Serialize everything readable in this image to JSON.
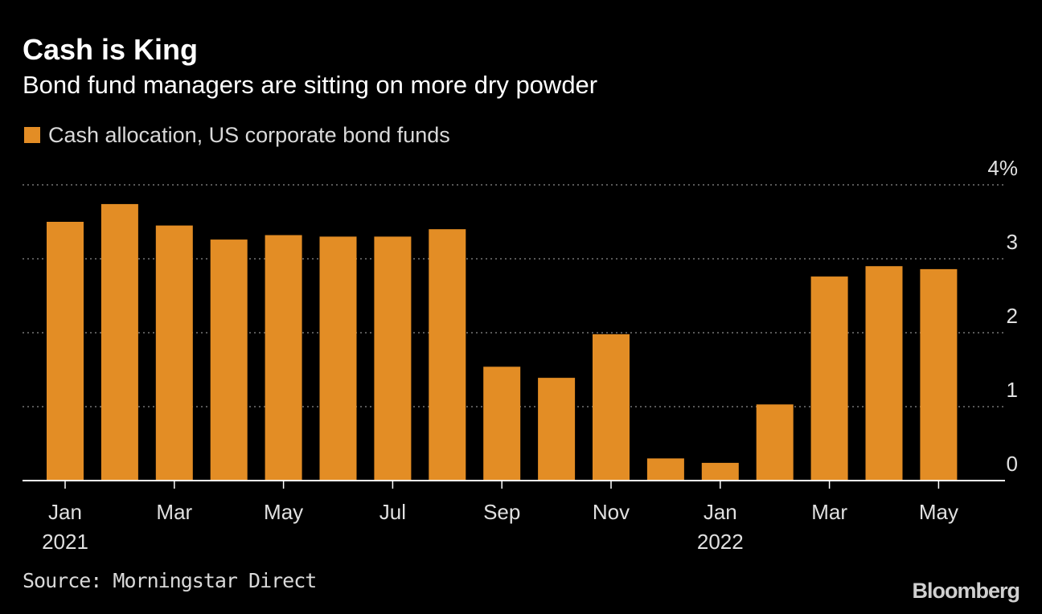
{
  "header": {
    "title": "Cash is King",
    "subtitle": "Bond fund managers are sitting on more dry powder"
  },
  "chart_data": {
    "type": "bar",
    "categories": [
      "Jan 2021",
      "Feb 2021",
      "Mar 2021",
      "Apr 2021",
      "May 2021",
      "Jun 2021",
      "Jul 2021",
      "Aug 2021",
      "Sep 2021",
      "Oct 2021",
      "Nov 2021",
      "Dec 2021",
      "Jan 2022",
      "Feb 2022",
      "Mar 2022",
      "Apr 2022",
      "May 2022"
    ],
    "series": [
      {
        "name": "Cash allocation, US corporate bond funds",
        "color": "#e38d25",
        "values": [
          3.5,
          3.74,
          3.45,
          3.26,
          3.32,
          3.3,
          3.3,
          3.4,
          1.54,
          1.39,
          1.98,
          0.3,
          0.24,
          1.03,
          2.76,
          2.9,
          2.86
        ]
      }
    ],
    "ylim": [
      0,
      4
    ],
    "yticks": [
      {
        "value": 0,
        "label": "0"
      },
      {
        "value": 1,
        "label": "1"
      },
      {
        "value": 2,
        "label": "2"
      },
      {
        "value": 3,
        "label": "3"
      },
      {
        "value": 4,
        "label": "4%"
      }
    ],
    "xticks": [
      {
        "index": 0,
        "label": "Jan",
        "sublabel": "2021"
      },
      {
        "index": 2,
        "label": "Mar",
        "sublabel": ""
      },
      {
        "index": 4,
        "label": "May",
        "sublabel": ""
      },
      {
        "index": 6,
        "label": "Jul",
        "sublabel": ""
      },
      {
        "index": 8,
        "label": "Sep",
        "sublabel": ""
      },
      {
        "index": 10,
        "label": "Nov",
        "sublabel": ""
      },
      {
        "index": 12,
        "label": "Jan",
        "sublabel": "2022"
      },
      {
        "index": 14,
        "label": "Mar",
        "sublabel": ""
      },
      {
        "index": 16,
        "label": "May",
        "sublabel": ""
      }
    ],
    "xlabel": "",
    "ylabel": "",
    "grid": "horizontal dotted",
    "legend_position": "top-left",
    "y_axis_side": "right"
  },
  "footer": {
    "source": "Source: Morningstar Direct",
    "brand": "Bloomberg"
  },
  "colors": {
    "background": "#000000",
    "bar": "#e38d25",
    "grid": "#8c8c8c",
    "text": "#ffffff"
  }
}
